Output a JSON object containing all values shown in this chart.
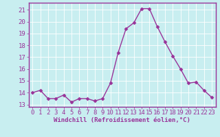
{
  "x": [
    0,
    1,
    2,
    3,
    4,
    5,
    6,
    7,
    8,
    9,
    10,
    11,
    12,
    13,
    14,
    15,
    16,
    17,
    18,
    19,
    20,
    21,
    22,
    23
  ],
  "y": [
    14.0,
    14.2,
    13.5,
    13.5,
    13.8,
    13.2,
    13.5,
    13.5,
    13.3,
    13.5,
    14.8,
    17.4,
    19.4,
    19.9,
    21.1,
    21.1,
    19.6,
    18.3,
    17.1,
    16.0,
    14.8,
    14.9,
    14.2,
    13.6
  ],
  "line_color": "#993399",
  "marker": "D",
  "marker_size": 2.5,
  "bg_color": "#c8eef0",
  "plot_bg_color": "#c8eef0",
  "grid_color": "#ffffff",
  "border_color": "#993399",
  "xlabel": "Windchill (Refroidissement éolien,°C)",
  "ylim": [
    12.8,
    21.6
  ],
  "xlim": [
    -0.5,
    23.5
  ],
  "yticks": [
    13,
    14,
    15,
    16,
    17,
    18,
    19,
    20,
    21
  ],
  "xticks": [
    0,
    1,
    2,
    3,
    4,
    5,
    6,
    7,
    8,
    9,
    10,
    11,
    12,
    13,
    14,
    15,
    16,
    17,
    18,
    19,
    20,
    21,
    22,
    23
  ],
  "tick_color": "#993399",
  "label_color": "#993399",
  "font_size_label": 6.5,
  "font_size_tick": 6.5,
  "linewidth": 1.0
}
